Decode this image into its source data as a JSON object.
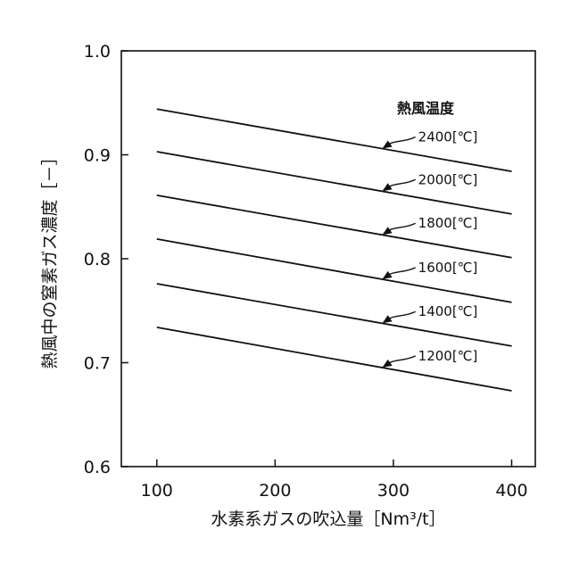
{
  "chart_data": {
    "type": "line",
    "xlabel": "水素系ガスの吹込量［Nm³/t］",
    "ylabel": "熱風中の窒素ガス濃度［－］",
    "xlim": [
      70,
      420
    ],
    "ylim": [
      0.6,
      1.0
    ],
    "x_ticks": [
      "100",
      "200",
      "300",
      "400"
    ],
    "y_ticks": [
      "0.6",
      "0.7",
      "0.8",
      "0.9",
      "1.0"
    ],
    "grid": false,
    "legend_title": "熱風温度",
    "series": [
      {
        "name": "2400[℃]",
        "x": [
          100,
          400
        ],
        "values": [
          0.944,
          0.884
        ]
      },
      {
        "name": "2000[℃]",
        "x": [
          100,
          400
        ],
        "values": [
          0.903,
          0.843
        ]
      },
      {
        "name": "1800[℃]",
        "x": [
          100,
          400
        ],
        "values": [
          0.861,
          0.801
        ]
      },
      {
        "name": "1600[℃]",
        "x": [
          100,
          400
        ],
        "values": [
          0.819,
          0.758
        ]
      },
      {
        "name": "1400[℃]",
        "x": [
          100,
          400
        ],
        "values": [
          0.776,
          0.716
        ]
      },
      {
        "name": "1200[℃]",
        "x": [
          100,
          400
        ],
        "values": [
          0.734,
          0.673
        ]
      }
    ],
    "annotation_at_x": 290,
    "colors": {
      "line": "#111111",
      "background": "#ffffff"
    }
  }
}
